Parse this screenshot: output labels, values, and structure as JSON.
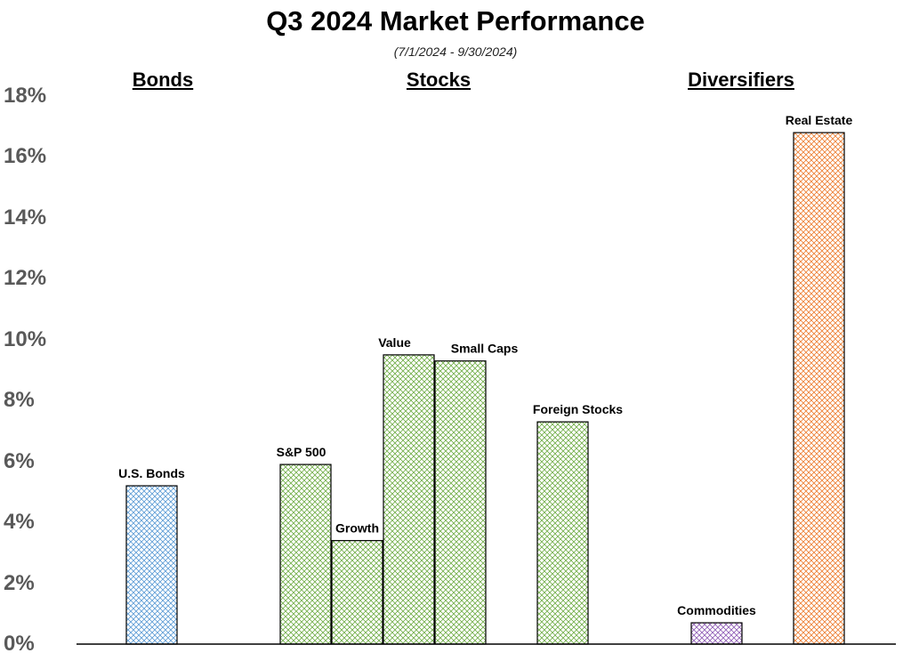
{
  "title": "Q3 2024 Market Performance",
  "subtitle": "(7/1/2024 - 9/30/2024)",
  "groups": [
    {
      "label": "Bonds"
    },
    {
      "label": "Stocks"
    },
    {
      "label": "Diversifiers"
    }
  ],
  "y_ticks": [
    "0%",
    "2%",
    "4%",
    "6%",
    "8%",
    "10%",
    "12%",
    "14%",
    "16%",
    "18%"
  ],
  "chart_data": {
    "type": "bar",
    "title": "Q3 2024 Market Performance",
    "subtitle": "(7/1/2024 - 9/30/2024)",
    "xlabel": "",
    "ylabel": "",
    "ylim": [
      0,
      18
    ],
    "grid": false,
    "categories": [
      "U.S. Bonds",
      "S&P 500",
      "Growth",
      "Value",
      "Small Caps",
      "Foreign Stocks",
      "Commodities",
      "Real Estate"
    ],
    "values": [
      5.2,
      5.9,
      3.4,
      9.5,
      9.3,
      7.3,
      0.7,
      16.8
    ],
    "group_of_category": [
      "Bonds",
      "Stocks",
      "Stocks",
      "Stocks",
      "Stocks",
      "Stocks",
      "Diversifiers",
      "Diversifiers"
    ],
    "colors": {
      "Bonds": "#5b9bd5",
      "Stocks": "#70ad47",
      "Commodities": "#8e5bb5",
      "Real Estate": "#ed7d31",
      "outline": "#000000"
    }
  }
}
